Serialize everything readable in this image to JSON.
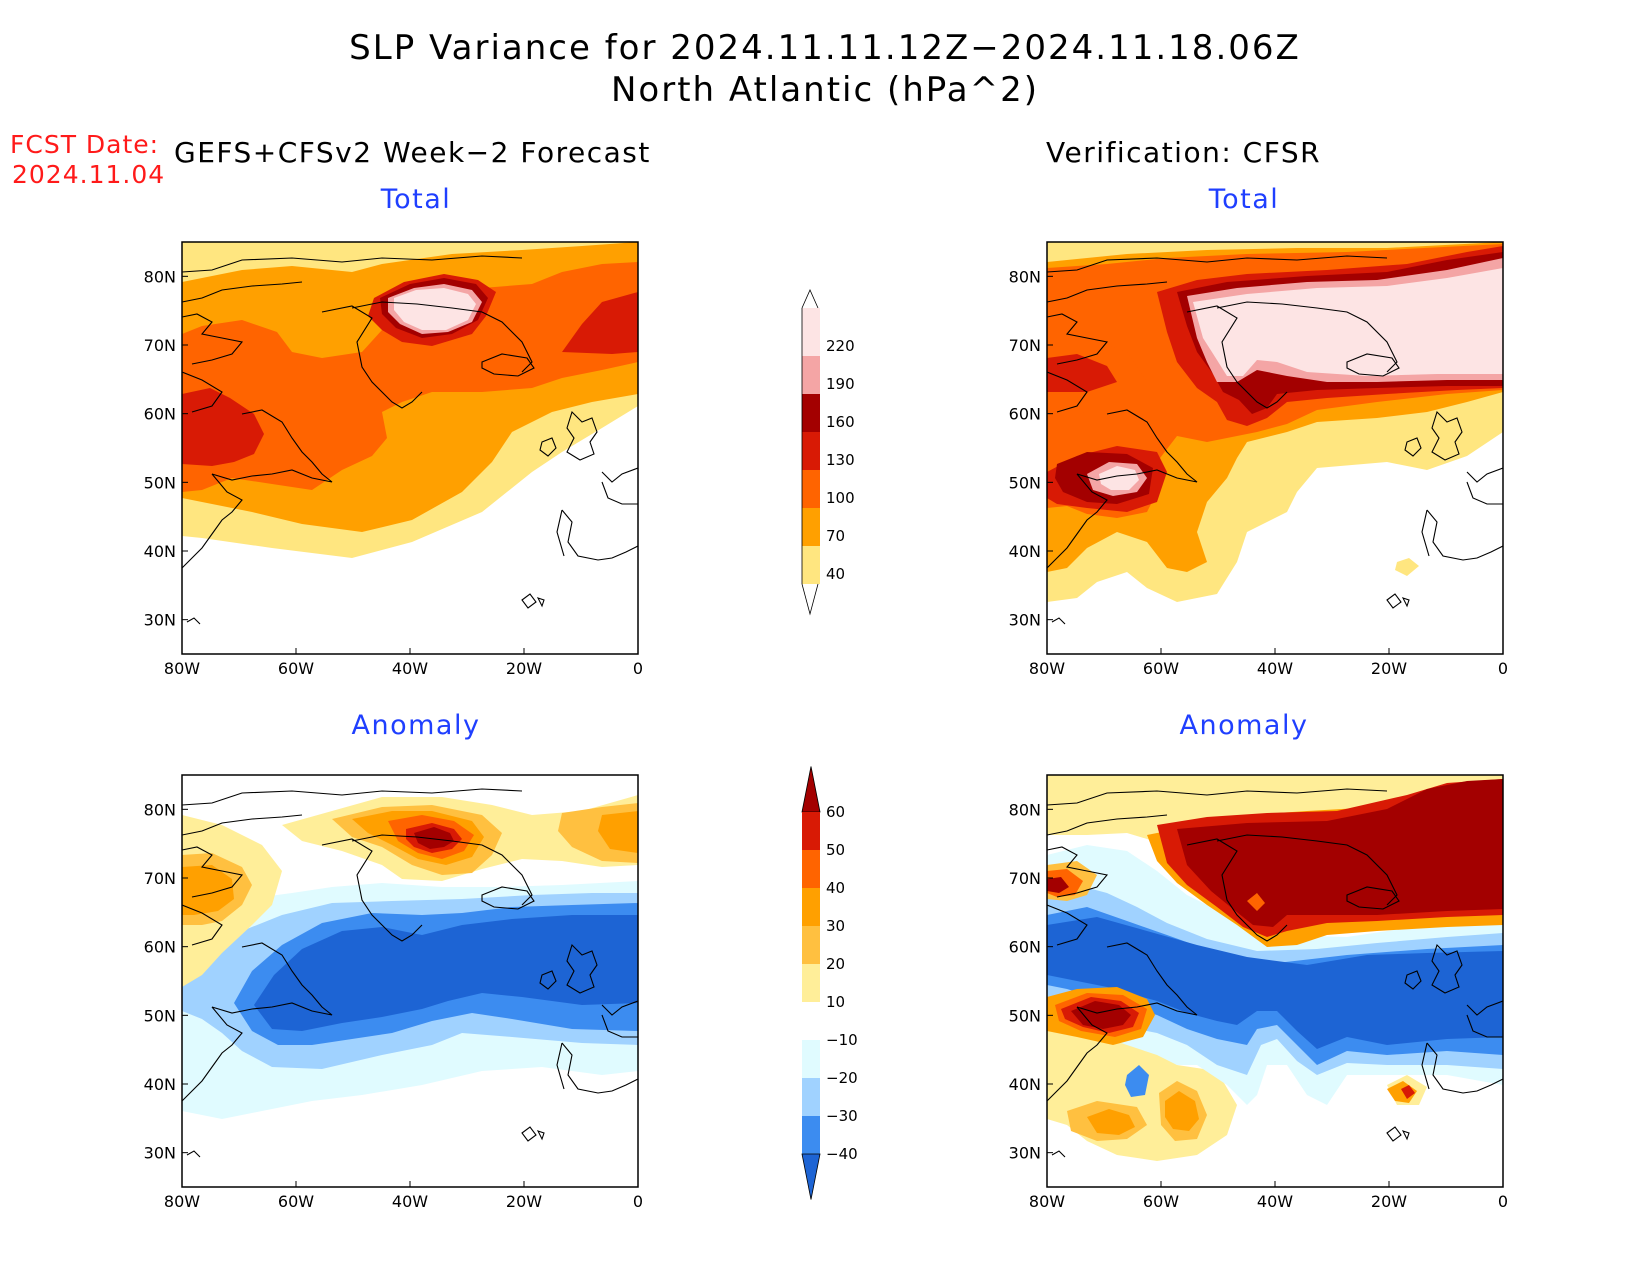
{
  "title": {
    "line1": "SLP Variance for 2024.11.11.12Z−2024.11.18.06Z",
    "line2": "North Atlantic (hPa^2)"
  },
  "fcst_date": {
    "label": "FCST Date:",
    "value": "2024.11.04"
  },
  "forecast_header": "GEFS+CFSv2 Week−2 Forecast",
  "verification_header": "Verification: CFSR",
  "panels": [
    {
      "id": "fcst-total",
      "subtitle": "Total"
    },
    {
      "id": "verif-total",
      "subtitle": "Total"
    },
    {
      "id": "fcst-anomaly",
      "subtitle": "Anomaly"
    },
    {
      "id": "verif-anomaly",
      "subtitle": "Anomaly"
    }
  ],
  "axes": {
    "lon_ticks": [
      "80W",
      "60W",
      "40W",
      "20W",
      "0"
    ],
    "lat_ticks": [
      "80N",
      "70N",
      "60N",
      "50N",
      "40N",
      "30N"
    ]
  },
  "colorbars": {
    "total": {
      "levels": [
        "220",
        "190",
        "160",
        "130",
        "100",
        "70",
        "40"
      ],
      "colors": [
        "#fde4e4",
        "#f4a5a5",
        "#a30000",
        "#d81a05",
        "#ff6400",
        "#ffa000",
        "#ffe680"
      ]
    },
    "anomaly": {
      "levels": [
        "60",
        "50",
        "40",
        "30",
        "20",
        "10",
        "−10",
        "−20",
        "−30",
        "−40"
      ],
      "colors": [
        "#a30000",
        "#d81a05",
        "#ff6400",
        "#ffa000",
        "#ffc040",
        "#ffee99",
        "#ffffff",
        "#e0fbff",
        "#a0d2ff",
        "#3c8cf0",
        "#1d64d4"
      ]
    }
  }
}
